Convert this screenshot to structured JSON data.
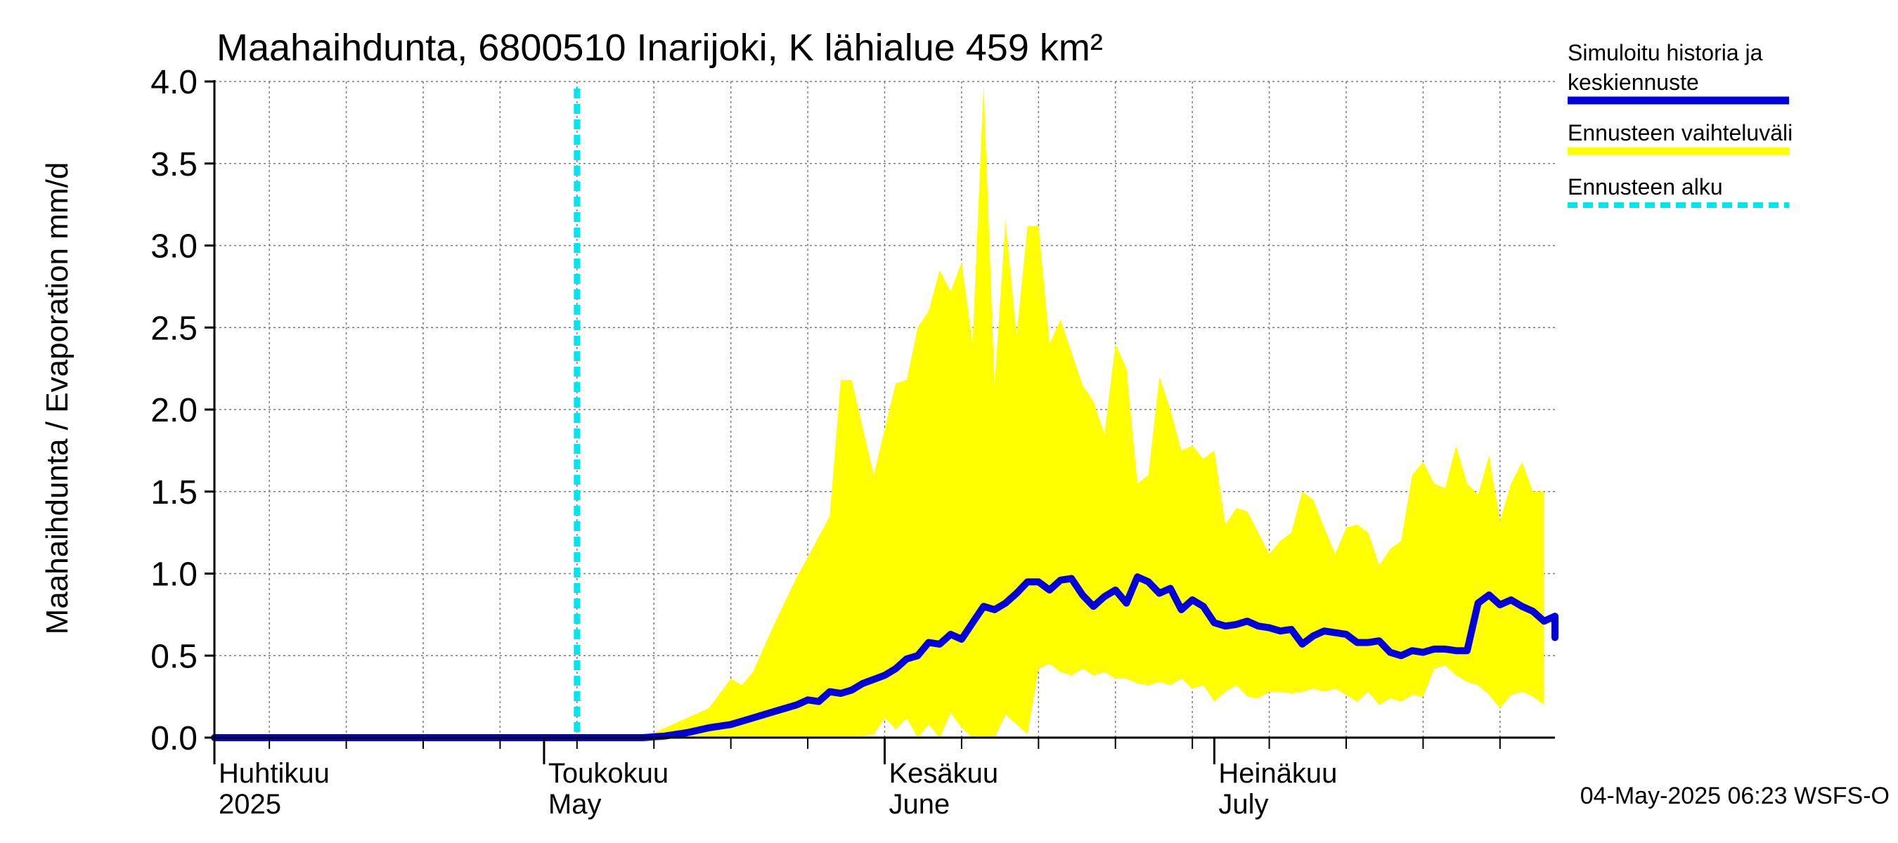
{
  "chart_data": {
    "type": "area",
    "title": "Maahaihdunta, 6800510 Inarijoki, K lähialue 459 km²",
    "ylabel": "Maahaihdunta / Evaporation   mm/d",
    "ylim": [
      0,
      4.0
    ],
    "yticks": [
      "0.0",
      "0.5",
      "1.0",
      "1.5",
      "2.0",
      "2.5",
      "3.0",
      "3.5",
      "4.0"
    ],
    "xlim": [
      "2025-04-01",
      "2025-07-31"
    ],
    "grid": true,
    "x_labels": [
      {
        "date": "2025-04-01",
        "line1": "Huhtikuu",
        "line2": "2025"
      },
      {
        "date": "2025-05-01",
        "line1": "Toukokuu",
        "line2": "May"
      },
      {
        "date": "2025-06-01",
        "line1": "Kesäkuu",
        "line2": "June"
      },
      {
        "date": "2025-07-01",
        "line1": "Heinäkuu",
        "line2": "July"
      }
    ],
    "forecast_start": "2025-05-04",
    "legend": {
      "placement": "right",
      "items": [
        {
          "label_lines": [
            "Simuloitu historia ja",
            "keskiennuste"
          ],
          "color": "#0000dd",
          "style": "solid"
        },
        {
          "label_lines": [
            "Ennusteen vaihteluväli"
          ],
          "color": "#ffff00",
          "style": "solid"
        },
        {
          "label_lines": [
            "Ennusteen alku"
          ],
          "color": "#00e5ee",
          "style": "dashed"
        }
      ]
    },
    "footer": "04-May-2025 06:23 WSFS-O",
    "colors": {
      "median": "#0000dd",
      "band": "#ffff00",
      "forecast_line": "#00e5ee"
    },
    "series": [
      {
        "name": "Simuloitu historia ja keskiennuste",
        "points": [
          [
            "2025-04-01",
            0.0
          ],
          [
            "2025-05-10",
            0.0
          ],
          [
            "2025-05-12",
            0.01
          ],
          [
            "2025-05-14",
            0.03
          ],
          [
            "2025-05-16",
            0.06
          ],
          [
            "2025-05-18",
            0.08
          ],
          [
            "2025-05-20",
            0.12
          ],
          [
            "2025-05-22",
            0.16
          ],
          [
            "2025-05-24",
            0.2
          ],
          [
            "2025-05-25",
            0.23
          ],
          [
            "2025-05-26",
            0.22
          ],
          [
            "2025-05-27",
            0.28
          ],
          [
            "2025-05-28",
            0.27
          ],
          [
            "2025-05-29",
            0.29
          ],
          [
            "2025-05-30",
            0.33
          ],
          [
            "2025-06-01",
            0.38
          ],
          [
            "2025-06-02",
            0.42
          ],
          [
            "2025-06-03",
            0.48
          ],
          [
            "2025-06-04",
            0.5
          ],
          [
            "2025-06-05",
            0.58
          ],
          [
            "2025-06-06",
            0.57
          ],
          [
            "2025-06-07",
            0.63
          ],
          [
            "2025-06-08",
            0.6
          ],
          [
            "2025-06-09",
            0.7
          ],
          [
            "2025-06-10",
            0.8
          ],
          [
            "2025-06-11",
            0.78
          ],
          [
            "2025-06-12",
            0.82
          ],
          [
            "2025-06-13",
            0.88
          ],
          [
            "2025-06-14",
            0.95
          ],
          [
            "2025-06-15",
            0.95
          ],
          [
            "2025-06-16",
            0.9
          ],
          [
            "2025-06-17",
            0.96
          ],
          [
            "2025-06-18",
            0.97
          ],
          [
            "2025-06-19",
            0.87
          ],
          [
            "2025-06-20",
            0.8
          ],
          [
            "2025-06-21",
            0.86
          ],
          [
            "2025-06-22",
            0.9
          ],
          [
            "2025-06-23",
            0.82
          ],
          [
            "2025-06-24",
            0.98
          ],
          [
            "2025-06-25",
            0.95
          ],
          [
            "2025-06-26",
            0.88
          ],
          [
            "2025-06-27",
            0.91
          ],
          [
            "2025-06-28",
            0.78
          ],
          [
            "2025-06-29",
            0.84
          ],
          [
            "2025-06-30",
            0.8
          ],
          [
            "2025-07-01",
            0.7
          ],
          [
            "2025-07-02",
            0.68
          ],
          [
            "2025-07-03",
            0.69
          ],
          [
            "2025-07-04",
            0.71
          ],
          [
            "2025-07-05",
            0.68
          ],
          [
            "2025-07-06",
            0.67
          ],
          [
            "2025-07-07",
            0.65
          ],
          [
            "2025-07-08",
            0.66
          ],
          [
            "2025-07-09",
            0.57
          ],
          [
            "2025-07-10",
            0.62
          ],
          [
            "2025-07-11",
            0.65
          ],
          [
            "2025-07-12",
            0.64
          ],
          [
            "2025-07-13",
            0.63
          ],
          [
            "2025-07-14",
            0.58
          ],
          [
            "2025-07-15",
            0.58
          ],
          [
            "2025-07-16",
            0.59
          ],
          [
            "2025-07-17",
            0.52
          ],
          [
            "2025-07-18",
            0.5
          ],
          [
            "2025-07-19",
            0.53
          ],
          [
            "2025-07-20",
            0.52
          ],
          [
            "2025-07-21",
            0.54
          ],
          [
            "2025-07-22",
            0.54
          ],
          [
            "2025-07-23",
            0.53
          ],
          [
            "2025-07-24",
            0.53
          ],
          [
            "2025-07-25",
            0.82
          ],
          [
            "2025-07-26",
            0.87
          ],
          [
            "2025-07-27",
            0.81
          ],
          [
            "2025-07-28",
            0.84
          ],
          [
            "2025-07-29",
            0.8
          ],
          [
            "2025-07-30",
            0.77
          ],
          [
            "2025-07-31",
            0.71
          ],
          [
            "2025-08-01",
            0.74
          ],
          [
            "2025-08-02",
            0.72
          ],
          [
            "2025-08-03",
            0.69
          ],
          [
            "2025-08-04",
            0.74
          ],
          [
            "2025-08-05",
            0.65
          ],
          [
            "2025-08-06",
            0.61
          ]
        ]
      },
      {
        "name": "Ennusteen vaihteluväli",
        "upper": [
          [
            "2025-05-10",
            0.0
          ],
          [
            "2025-05-12",
            0.06
          ],
          [
            "2025-05-14",
            0.12
          ],
          [
            "2025-05-16",
            0.18
          ],
          [
            "2025-05-18",
            0.36
          ],
          [
            "2025-05-19",
            0.32
          ],
          [
            "2025-05-20",
            0.4
          ],
          [
            "2025-05-22",
            0.7
          ],
          [
            "2025-05-24",
            0.98
          ],
          [
            "2025-05-25",
            1.1
          ],
          [
            "2025-05-27",
            1.35
          ],
          [
            "2025-05-28",
            2.18
          ],
          [
            "2025-05-29",
            2.18
          ],
          [
            "2025-05-31",
            1.6
          ],
          [
            "2025-06-02",
            2.16
          ],
          [
            "2025-06-03",
            2.18
          ],
          [
            "2025-06-04",
            2.5
          ],
          [
            "2025-06-05",
            2.6
          ],
          [
            "2025-06-06",
            2.85
          ],
          [
            "2025-06-07",
            2.72
          ],
          [
            "2025-06-08",
            2.9
          ],
          [
            "2025-06-09",
            2.4
          ],
          [
            "2025-06-10",
            3.98
          ],
          [
            "2025-06-11",
            2.15
          ],
          [
            "2025-06-12",
            3.15
          ],
          [
            "2025-06-13",
            2.45
          ],
          [
            "2025-06-14",
            3.12
          ],
          [
            "2025-06-15",
            3.12
          ],
          [
            "2025-06-16",
            2.4
          ],
          [
            "2025-06-17",
            2.55
          ],
          [
            "2025-06-18",
            2.35
          ],
          [
            "2025-06-19",
            2.15
          ],
          [
            "2025-06-20",
            2.05
          ],
          [
            "2025-06-21",
            1.85
          ],
          [
            "2025-06-22",
            2.4
          ],
          [
            "2025-06-23",
            2.25
          ],
          [
            "2025-06-24",
            1.55
          ],
          [
            "2025-06-25",
            1.6
          ],
          [
            "2025-06-26",
            2.2
          ],
          [
            "2025-06-27",
            2.0
          ],
          [
            "2025-06-28",
            1.75
          ],
          [
            "2025-06-29",
            1.78
          ],
          [
            "2025-06-30",
            1.7
          ],
          [
            "2025-07-01",
            1.75
          ],
          [
            "2025-07-02",
            1.3
          ],
          [
            "2025-07-03",
            1.4
          ],
          [
            "2025-07-04",
            1.38
          ],
          [
            "2025-07-05",
            1.25
          ],
          [
            "2025-07-06",
            1.12
          ],
          [
            "2025-07-07",
            1.2
          ],
          [
            "2025-07-08",
            1.25
          ],
          [
            "2025-07-09",
            1.5
          ],
          [
            "2025-07-10",
            1.45
          ],
          [
            "2025-07-11",
            1.28
          ],
          [
            "2025-07-12",
            1.12
          ],
          [
            "2025-07-13",
            1.28
          ],
          [
            "2025-07-14",
            1.3
          ],
          [
            "2025-07-15",
            1.25
          ],
          [
            "2025-07-16",
            1.05
          ],
          [
            "2025-07-17",
            1.15
          ],
          [
            "2025-07-18",
            1.2
          ],
          [
            "2025-07-19",
            1.6
          ],
          [
            "2025-07-20",
            1.68
          ],
          [
            "2025-07-21",
            1.55
          ],
          [
            "2025-07-22",
            1.52
          ],
          [
            "2025-07-23",
            1.78
          ],
          [
            "2025-07-24",
            1.55
          ],
          [
            "2025-07-25",
            1.48
          ],
          [
            "2025-07-26",
            1.72
          ],
          [
            "2025-07-27",
            1.32
          ],
          [
            "2025-07-28",
            1.55
          ],
          [
            "2025-07-29",
            1.68
          ],
          [
            "2025-07-30",
            1.5
          ],
          [
            "2025-07-31",
            1.5
          ]
        ],
        "lower": [
          [
            "2025-05-10",
            0.0
          ],
          [
            "2025-05-28",
            0.0
          ],
          [
            "2025-05-29",
            0.0
          ],
          [
            "2025-05-31",
            0.02
          ],
          [
            "2025-06-01",
            0.12
          ],
          [
            "2025-06-02",
            0.05
          ],
          [
            "2025-06-03",
            0.12
          ],
          [
            "2025-06-04",
            0.0
          ],
          [
            "2025-06-05",
            0.08
          ],
          [
            "2025-06-06",
            0.0
          ],
          [
            "2025-06-07",
            0.15
          ],
          [
            "2025-06-08",
            0.06
          ],
          [
            "2025-06-09",
            0.0
          ],
          [
            "2025-06-10",
            0.0
          ],
          [
            "2025-06-11",
            0.0
          ],
          [
            "2025-06-12",
            0.14
          ],
          [
            "2025-06-13",
            0.08
          ],
          [
            "2025-06-14",
            0.02
          ],
          [
            "2025-06-15",
            0.42
          ],
          [
            "2025-06-16",
            0.45
          ],
          [
            "2025-06-17",
            0.4
          ],
          [
            "2025-06-18",
            0.38
          ],
          [
            "2025-06-19",
            0.42
          ],
          [
            "2025-06-20",
            0.38
          ],
          [
            "2025-06-21",
            0.4
          ],
          [
            "2025-06-22",
            0.36
          ],
          [
            "2025-06-23",
            0.36
          ],
          [
            "2025-06-24",
            0.33
          ],
          [
            "2025-06-25",
            0.32
          ],
          [
            "2025-06-26",
            0.34
          ],
          [
            "2025-06-27",
            0.32
          ],
          [
            "2025-06-28",
            0.36
          ],
          [
            "2025-06-29",
            0.3
          ],
          [
            "2025-06-30",
            0.32
          ],
          [
            "2025-07-01",
            0.22
          ],
          [
            "2025-07-02",
            0.28
          ],
          [
            "2025-07-03",
            0.32
          ],
          [
            "2025-07-04",
            0.25
          ],
          [
            "2025-07-05",
            0.24
          ],
          [
            "2025-07-06",
            0.28
          ],
          [
            "2025-07-07",
            0.28
          ],
          [
            "2025-07-08",
            0.27
          ],
          [
            "2025-07-09",
            0.28
          ],
          [
            "2025-07-10",
            0.3
          ],
          [
            "2025-07-11",
            0.28
          ],
          [
            "2025-07-12",
            0.3
          ],
          [
            "2025-07-13",
            0.26
          ],
          [
            "2025-07-14",
            0.22
          ],
          [
            "2025-07-15",
            0.28
          ],
          [
            "2025-07-16",
            0.2
          ],
          [
            "2025-07-17",
            0.24
          ],
          [
            "2025-07-18",
            0.22
          ],
          [
            "2025-07-19",
            0.26
          ],
          [
            "2025-07-20",
            0.25
          ],
          [
            "2025-07-21",
            0.42
          ],
          [
            "2025-07-22",
            0.44
          ],
          [
            "2025-07-23",
            0.38
          ],
          [
            "2025-07-24",
            0.34
          ],
          [
            "2025-07-25",
            0.32
          ],
          [
            "2025-07-26",
            0.26
          ],
          [
            "2025-07-27",
            0.18
          ],
          [
            "2025-07-28",
            0.26
          ],
          [
            "2025-07-29",
            0.28
          ],
          [
            "2025-07-30",
            0.25
          ],
          [
            "2025-07-31",
            0.2
          ]
        ]
      }
    ]
  }
}
